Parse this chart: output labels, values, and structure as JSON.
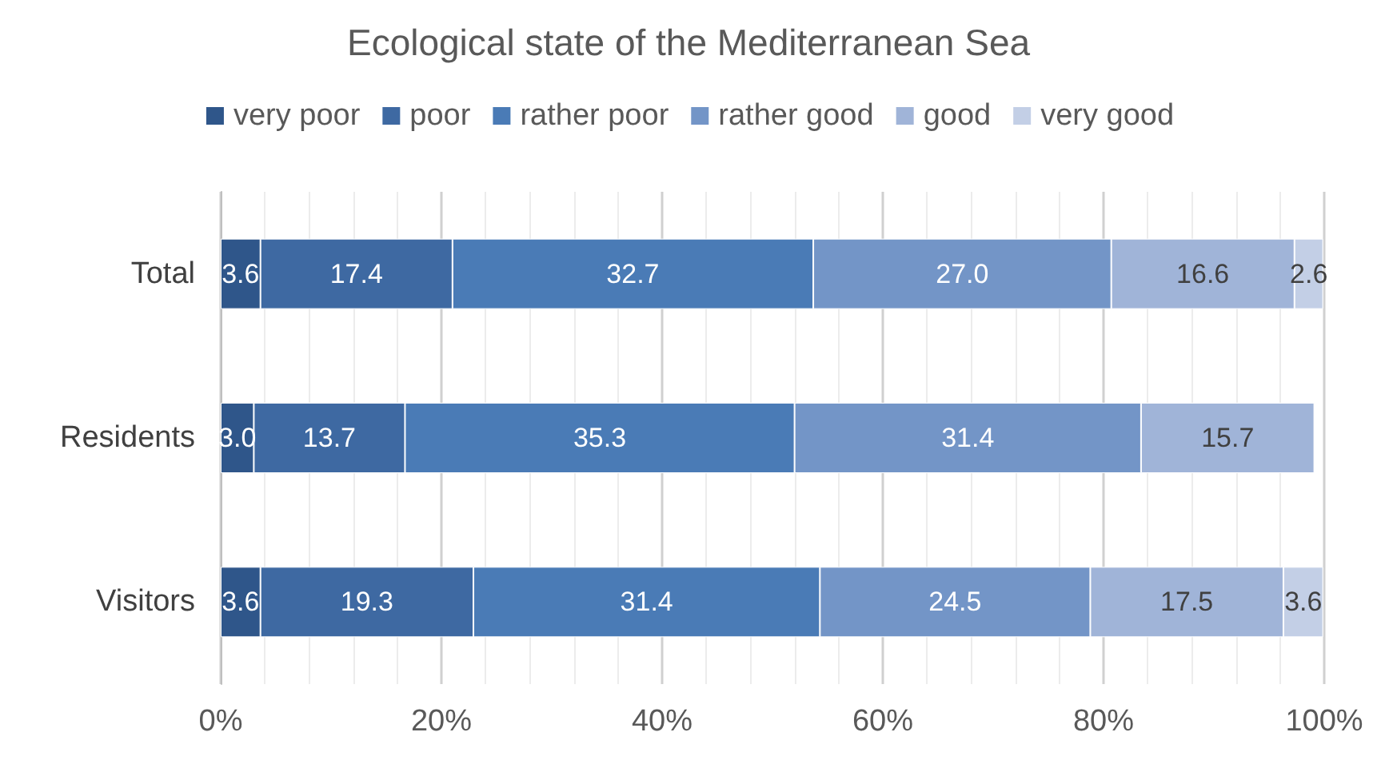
{
  "chart_data": {
    "type": "bar",
    "orientation": "horizontal",
    "stacked": true,
    "title": "Ecological state of the Mediterranean Sea",
    "categories": [
      "Total",
      "Residents",
      "Visitors"
    ],
    "series": [
      {
        "name": "very poor",
        "color": "#2f568a",
        "values": [
          3.6,
          3.0,
          3.6
        ],
        "value_labels": [
          "3.6",
          "3.0",
          "3.6"
        ]
      },
      {
        "name": "poor",
        "color": "#3e69a2",
        "values": [
          17.4,
          13.7,
          19.3
        ],
        "value_labels": [
          "17.4",
          "13.7",
          "19.3"
        ]
      },
      {
        "name": "rather poor",
        "color": "#4a7bb6",
        "values": [
          32.7,
          35.3,
          31.4
        ],
        "value_labels": [
          "32.7",
          "35.3",
          "31.4"
        ]
      },
      {
        "name": "rather good",
        "color": "#7395c7",
        "values": [
          27.0,
          31.4,
          24.5
        ],
        "value_labels": [
          "27.0",
          "31.4",
          "24.5"
        ]
      },
      {
        "name": "good",
        "color": "#a0b4d8",
        "values": [
          16.6,
          15.7,
          17.5
        ],
        "value_labels": [
          "16.6",
          "15.7",
          "17.5"
        ]
      },
      {
        "name": "very good",
        "color": "#c3cfe6",
        "values": [
          2.6,
          null,
          3.6
        ],
        "value_labels": [
          "2.6",
          null,
          "3.6"
        ]
      }
    ],
    "xlim": [
      0,
      100
    ],
    "xticks": [
      {
        "value": 0,
        "label": "0%"
      },
      {
        "value": 20,
        "label": "20%"
      },
      {
        "value": 40,
        "label": "40%"
      },
      {
        "value": 60,
        "label": "60%"
      },
      {
        "value": 80,
        "label": "80%"
      },
      {
        "value": 100,
        "label": "100%"
      }
    ],
    "grid": "x",
    "legend": "top"
  }
}
